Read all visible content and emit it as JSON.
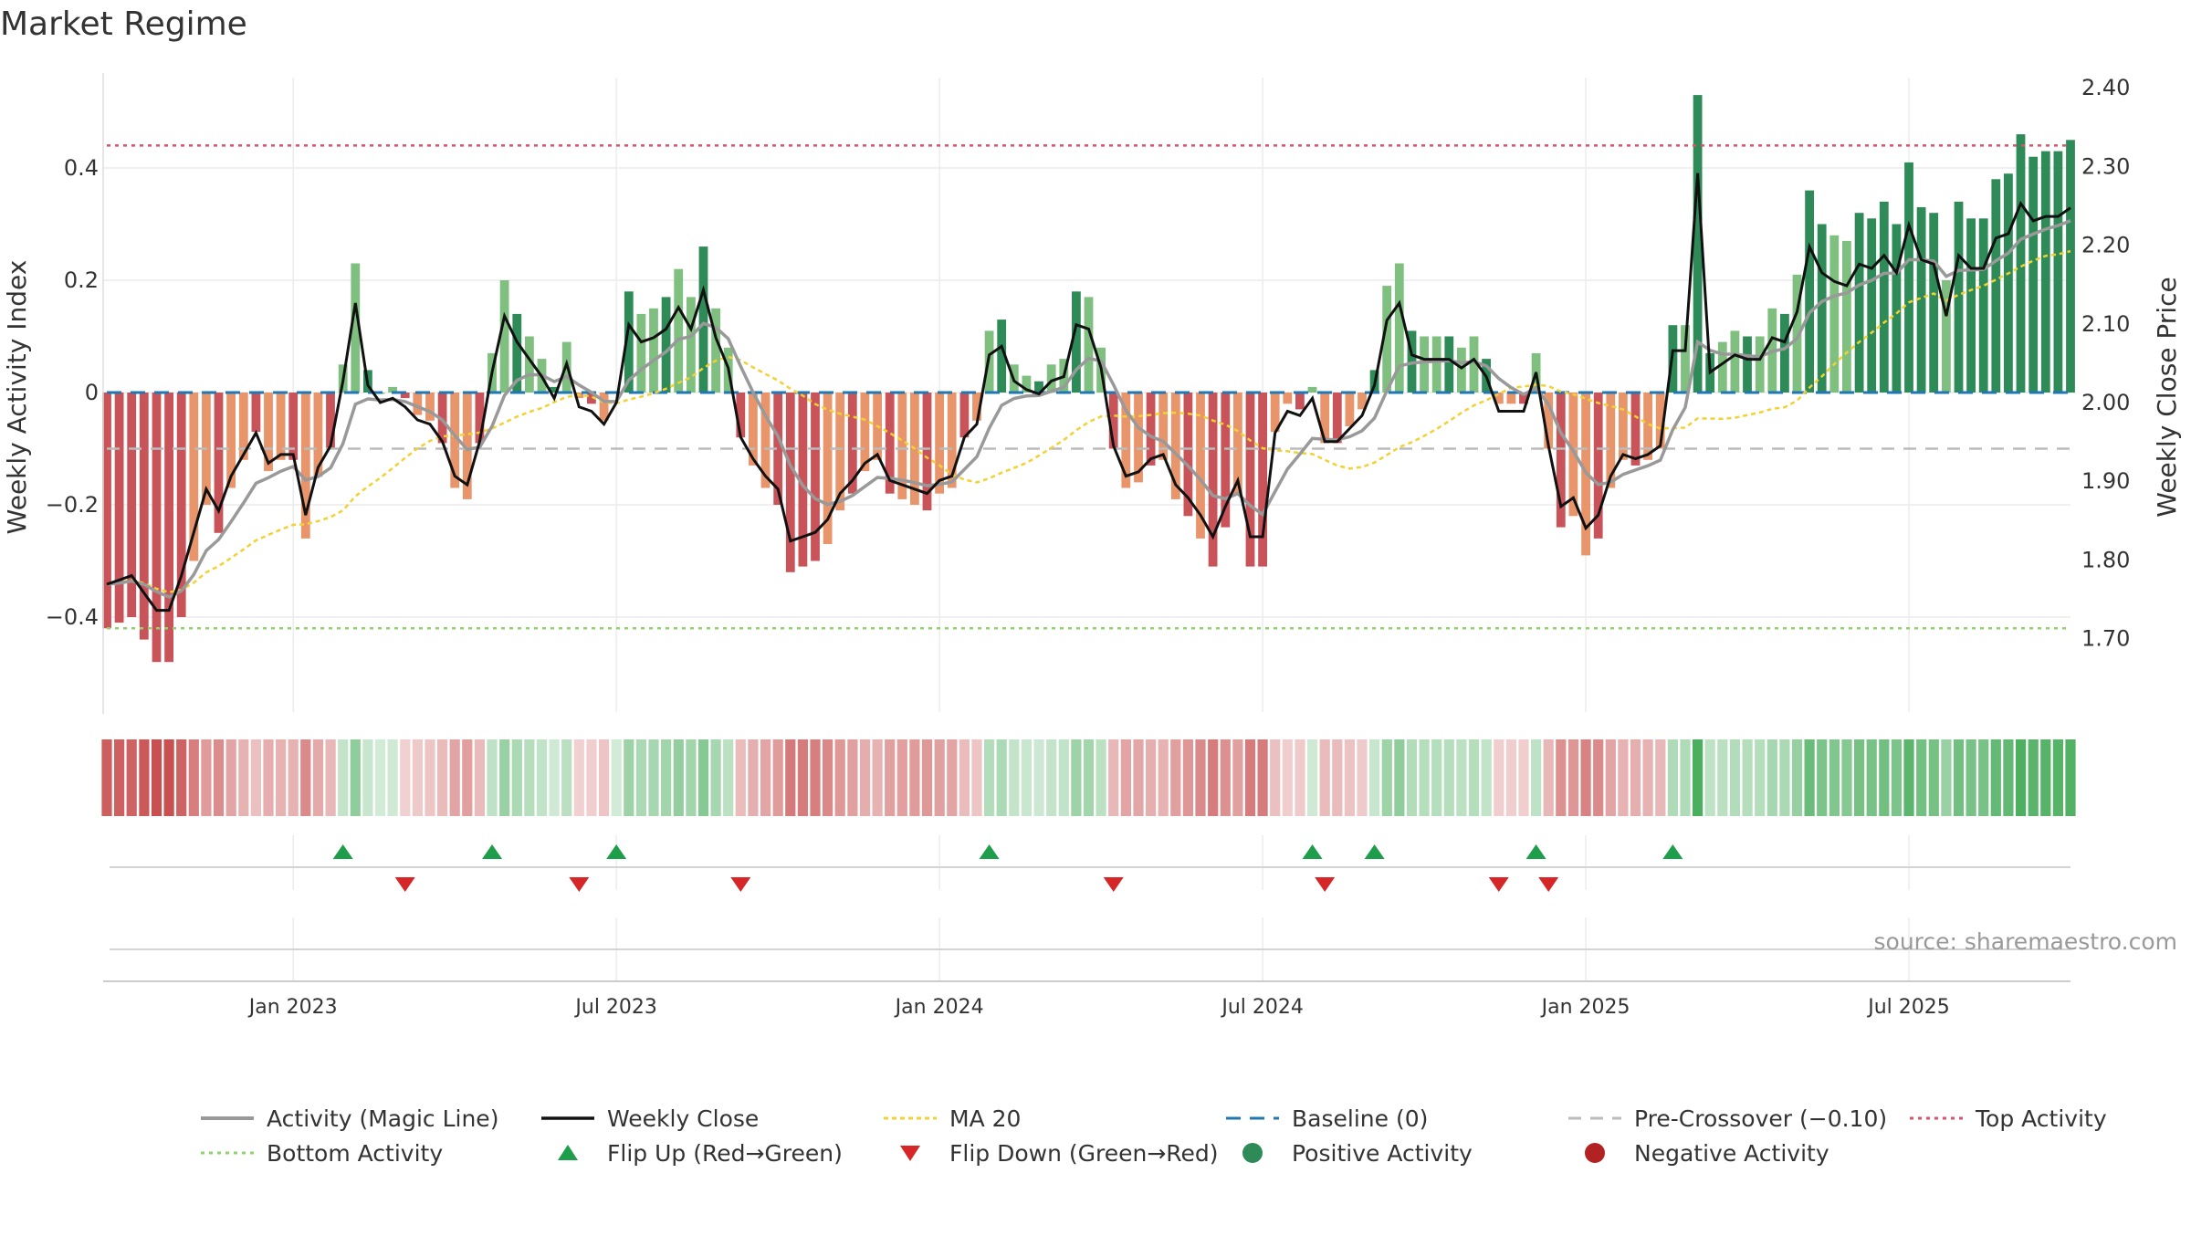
{
  "chart_data": {
    "type": "bar",
    "title": "Market Regime",
    "ylabel_left": "Weekly Activity Index",
    "ylabel_right": "Weekly Close Price",
    "ylim_left": [
      -0.57,
      0.57
    ],
    "ylim_right": [
      1.6,
      2.44
    ],
    "left_ticks": [
      {
        "v": 0.4,
        "label": "0.4"
      },
      {
        "v": 0.2,
        "label": "0.2"
      },
      {
        "v": 0,
        "label": "0"
      },
      {
        "v": -0.2,
        "label": "−0.2"
      },
      {
        "v": -0.4,
        "label": "−0.4"
      }
    ],
    "right_ticks": [
      {
        "v": 2.4,
        "label": "2.40"
      },
      {
        "v": 2.3,
        "label": "2.30"
      },
      {
        "v": 2.2,
        "label": "2.20"
      },
      {
        "v": 2.1,
        "label": "2.10"
      },
      {
        "v": 2.0,
        "label": "2.00"
      },
      {
        "v": 1.9,
        "label": "1.90"
      },
      {
        "v": 1.8,
        "label": "1.80"
      },
      {
        "v": 1.7,
        "label": "1.70"
      }
    ],
    "x_ticks": [
      {
        "week": 15,
        "label": "Jan 2023"
      },
      {
        "week": 41,
        "label": "Jul 2023"
      },
      {
        "week": 67,
        "label": "Jan 2024"
      },
      {
        "week": 93,
        "label": "Jul 2024"
      },
      {
        "week": 119,
        "label": "Jan 2025"
      },
      {
        "week": 145,
        "label": "Jul 2025"
      }
    ],
    "top_activity": 0.44,
    "bottom_activity": -0.42,
    "baseline": 0,
    "pre_crossover": -0.1,
    "activity_weekly": [
      -0.42,
      -0.41,
      -0.4,
      -0.44,
      -0.48,
      -0.48,
      -0.4,
      -0.3,
      -0.2,
      -0.25,
      -0.17,
      -0.12,
      -0.07,
      -0.14,
      -0.12,
      -0.12,
      -0.26,
      -0.15,
      -0.1,
      0.05,
      0.23,
      0.04,
      0.0,
      0.01,
      -0.01,
      -0.04,
      -0.05,
      -0.09,
      -0.17,
      -0.19,
      -0.09,
      0.07,
      0.2,
      0.14,
      0.1,
      0.06,
      0.01,
      0.09,
      -0.01,
      -0.02,
      -0.05,
      0.0,
      0.18,
      0.14,
      0.15,
      0.17,
      0.22,
      0.17,
      0.26,
      0.15,
      0.08,
      -0.08,
      -0.13,
      -0.17,
      -0.2,
      -0.32,
      -0.31,
      -0.3,
      -0.27,
      -0.21,
      -0.18,
      -0.14,
      -0.12,
      -0.18,
      -0.19,
      -0.2,
      -0.21,
      -0.18,
      -0.17,
      -0.08,
      -0.05,
      0.11,
      0.13,
      0.05,
      0.03,
      0.02,
      0.05,
      0.06,
      0.18,
      0.17,
      0.08,
      -0.1,
      -0.17,
      -0.16,
      -0.13,
      -0.12,
      -0.19,
      -0.22,
      -0.26,
      -0.31,
      -0.24,
      -0.18,
      -0.31,
      -0.31,
      -0.07,
      -0.02,
      -0.03,
      0.01,
      -0.09,
      -0.09,
      -0.06,
      -0.03,
      0.04,
      0.19,
      0.23,
      0.11,
      0.1,
      0.1,
      0.1,
      0.08,
      0.1,
      0.06,
      -0.02,
      -0.02,
      -0.02,
      0.07,
      -0.1,
      -0.24,
      -0.22,
      -0.29,
      -0.26,
      -0.17,
      -0.12,
      -0.13,
      -0.12,
      -0.1,
      0.12,
      0.12,
      0.53,
      0.07,
      0.09,
      0.11,
      0.1,
      0.1,
      0.15,
      0.14,
      0.21,
      0.36,
      0.3,
      0.28,
      0.27,
      0.32,
      0.31,
      0.34,
      0.3,
      0.41,
      0.33,
      0.32,
      0.2,
      0.34,
      0.31,
      0.31,
      0.38,
      0.39,
      0.46,
      0.42,
      0.43,
      0.43,
      0.45
    ]
  },
  "legend": {
    "activity_line": "Activity (Magic Line)",
    "weekly_close": "Weekly Close",
    "ma20": "MA 20",
    "baseline": "Baseline (0)",
    "pre_crossover": "Pre-Crossover (−0.10)",
    "top_activity": "Top Activity",
    "bottom_activity": "Bottom Activity",
    "flip_up": "Flip Up (Red→Green)",
    "flip_down": "Flip Down (Green→Red)",
    "positive": "Positive Activity",
    "negative": "Negative Activity"
  },
  "source": "source: sharemaestro.com",
  "colors": {
    "pos_dark": "#2e8b57",
    "pos_light": "#7fbf7f",
    "neg_dark": "#c8545a",
    "neg_light": "#e8956c",
    "magic_line": "#999999",
    "close": "#111111",
    "ma20": "#f2d232",
    "baseline": "#1f77b4",
    "top": "#d9536b",
    "bottom": "#90d26d",
    "flip_up": "#1e9e4a",
    "flip_down": "#d62728"
  }
}
